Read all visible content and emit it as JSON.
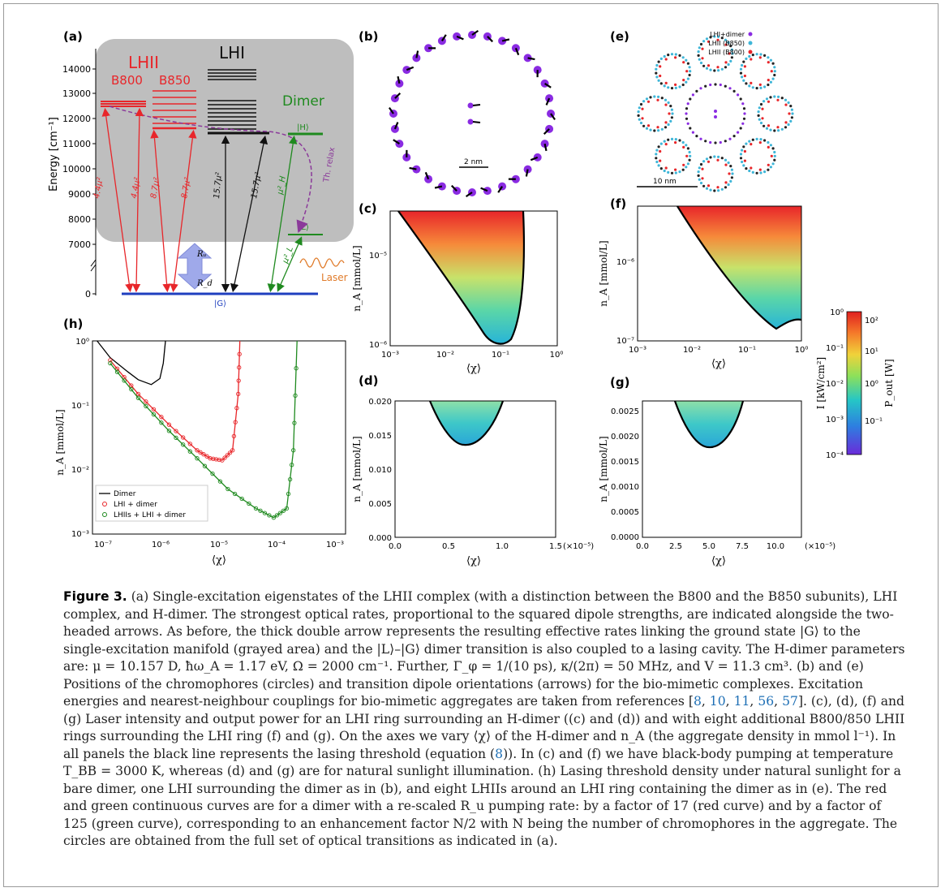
{
  "panels": {
    "a": {
      "tag": "(a)",
      "ylabel": "Energy [cm⁻¹]",
      "yticks": [
        "14000",
        "13000",
        "12000",
        "11000",
        "10000",
        "9000",
        "8000",
        "7000",
        "0"
      ],
      "labels": {
        "lhii": "LHII",
        "b800": "B800",
        "b850": "B850",
        "lhi": "LHI",
        "dimer": "Dimer",
        "H": "|H⟩",
        "L": "|L⟩",
        "G": "|G⟩",
        "relax": "Th. relax",
        "laser": "Laser",
        "Ru": "Rᵤ",
        "Rd": "R_d"
      },
      "rates": [
        "4.4μ²",
        "4.4μ²",
        "8.7μ²",
        "8.7μ²",
        "15.7μ²",
        "15.7μ²",
        "μ²_H",
        "μ²_L"
      ],
      "colors": {
        "lhii": "#e8262a",
        "lhi": "#111111",
        "dimer": "#1f8a1f",
        "relax": "#8b3a9a",
        "laser": "#e07b2a",
        "ground": "#1f3fbf"
      }
    },
    "b": {
      "tag": "(b)",
      "scale": "2 nm"
    },
    "e": {
      "tag": "(e)",
      "scale": "10 nm",
      "legend": [
        "LHI+dimer",
        "LHII (B850)",
        "LHII (B800)"
      ]
    },
    "c": {
      "tag": "(c)",
      "xlabel": "⟨χ⟩",
      "ylabel": "n_A [mmol/L]",
      "xticks": [
        "10⁻³",
        "10⁻²",
        "10⁻¹",
        "10⁰"
      ],
      "yticks": [
        "10⁻⁵",
        "10⁻⁶"
      ]
    },
    "f": {
      "tag": "(f)",
      "xlabel": "⟨χ⟩",
      "ylabel": "n_A [mmol/L]",
      "xticks": [
        "10⁻³",
        "10⁻²",
        "10⁻¹",
        "10⁰"
      ],
      "yticks": [
        "10⁻⁶",
        "10⁻⁷"
      ]
    },
    "d": {
      "tag": "(d)",
      "xlabel": "⟨χ⟩",
      "ylabel": "n_A [mmol/L]",
      "xticks": [
        "0.0",
        "0.5",
        "1.0",
        "1.5"
      ],
      "yticks": [
        "0.020",
        "0.015",
        "0.010",
        "0.005",
        "0.000"
      ],
      "xmult": "(×10⁻⁵)"
    },
    "g": {
      "tag": "(g)",
      "xlabel": "⟨χ⟩",
      "ylabel": "n_A [mmol/L]",
      "xticks": [
        "0.0",
        "2.5",
        "5.0",
        "7.5",
        "10.0"
      ],
      "yticks": [
        "0.0025",
        "0.0020",
        "0.0015",
        "0.0010",
        "0.0005",
        "0.0000"
      ],
      "xmult": "(×10⁻⁵)"
    },
    "h": {
      "tag": "(h)",
      "xlabel": "⟨χ⟩",
      "ylabel": "n_A [mmol/L]",
      "xticks": [
        "10⁻⁷",
        "10⁻⁶",
        "10⁻⁵",
        "10⁻⁴",
        "10⁻³"
      ],
      "yticks": [
        "10⁰",
        "10⁻¹",
        "10⁻²",
        "10⁻³"
      ],
      "legend": [
        "Dimer",
        "LHI + dimer",
        "LHIIs + LHI + dimer"
      ]
    },
    "colorbar": {
      "left_label": "I [kW/cm²]",
      "right_label": "P_out [W]",
      "left_ticks": [
        "10⁰",
        "10⁻¹",
        "10⁻²",
        "10⁻³",
        "10⁻⁴"
      ],
      "right_ticks": [
        "10²",
        "10¹",
        "10⁰",
        "10⁻¹"
      ]
    }
  },
  "chart_data": [
    {
      "type": "line",
      "title": "",
      "xlabel": "⟨χ⟩",
      "ylabel": "n_A [mmol/L]",
      "xscale": "log",
      "yscale": "log",
      "xlim": [
        5e-08,
        0.001
      ],
      "ylim": [
        0.001,
        1
      ],
      "series": [
        {
          "name": "Dimer",
          "color": "#000000",
          "x": [
            6e-08,
            1e-07,
            2e-07,
            3e-07,
            5e-07,
            7e-07,
            8e-07,
            8.7e-07
          ],
          "y": [
            1.0,
            0.55,
            0.33,
            0.25,
            0.21,
            0.26,
            0.45,
            1.0
          ]
        },
        {
          "name": "LHI + dimer",
          "color": "#e8262a",
          "x": [
            1e-07,
            3e-07,
            1e-06,
            3e-06,
            5e-06,
            8e-06,
            1.2e-05,
            1.5e-05,
            1.6e-05
          ],
          "y": [
            0.5,
            0.15,
            0.05,
            0.02,
            0.015,
            0.014,
            0.02,
            0.15,
            1.0
          ]
        },
        {
          "name": "LHIIs + LHI + dimer",
          "color": "#1f8a1f",
          "x": [
            1e-07,
            3e-07,
            1e-06,
            3e-06,
            1e-05,
            3e-05,
            6e-05,
            0.0001,
            0.00013,
            0.00015
          ],
          "y": [
            0.45,
            0.13,
            0.04,
            0.015,
            0.005,
            0.0025,
            0.0018,
            0.0025,
            0.02,
            1.0
          ]
        }
      ]
    },
    {
      "type": "line",
      "title": "",
      "xlabel": "⟨χ⟩",
      "ylabel": "n_A [mmol/L]",
      "xscale": "log",
      "yscale": "log",
      "xlim": [
        0.001,
        1
      ],
      "ylim": [
        9e-07,
        4e-05
      ],
      "series": [
        {
          "name": "",
          "x": [
            0.0018,
            0.01,
            0.05,
            0.1,
            0.15,
            0.2,
            0.23
          ],
          "y": [
            3.5e-05,
            8e-06,
            2e-06,
            1.1e-06,
            1.3e-06,
            6e-06,
            3.5e-05
          ]
        }
      ]
    },
    {
      "type": "line",
      "title": "",
      "xlabel": "⟨χ⟩",
      "ylabel": "n_A [mmol/L]",
      "xscale": "log",
      "yscale": "log",
      "xlim": [
        0.001,
        1
      ],
      "ylim": [
        1e-07,
        4e-06
      ],
      "series": [
        {
          "name": "",
          "x": [
            0.007,
            0.02,
            0.1,
            0.3,
            0.6,
            0.8,
            1.0
          ],
          "y": [
            3.5e-06,
            1.6e-06,
            6e-07,
            3e-07,
            1.9e-07,
            1.7e-07,
            1.8e-07
          ]
        }
      ]
    },
    {
      "type": "line",
      "title": "",
      "xlabel": "⟨χ⟩",
      "ylabel": "n_A [mmol/L]",
      "xlim": [
        0,
        1.5e-05
      ],
      "ylim": [
        0,
        0.02
      ],
      "series": [
        {
          "name": "",
          "x": [
            3.3e-06,
            5e-06,
            7e-06,
            8.5e-06,
            1e-05,
            1.2e-05,
            1.3e-05
          ],
          "y": [
            0.02,
            0.0155,
            0.014,
            0.0136,
            0.0139,
            0.0155,
            0.02
          ]
        }
      ]
    },
    {
      "type": "line",
      "title": "",
      "xlabel": "⟨χ⟩",
      "ylabel": "n_A [mmol/L]",
      "xlim": [
        0,
        0.00012
      ],
      "ylim": [
        0,
        0.0027
      ],
      "series": [
        {
          "name": "",
          "x": [
            3e-05,
            4e-05,
            5e-05,
            6.2e-05,
            7.5e-05,
            8.5e-05,
            9.5e-05
          ],
          "y": [
            0.0027,
            0.002,
            0.00185,
            0.0018,
            0.00185,
            0.0021,
            0.0027
          ]
        }
      ]
    }
  ],
  "caption": {
    "label": "Figure 3.",
    "p1": " (a) Single-excitation eigenstates of the LHII complex (with a distinction between the B800 and the B850 subunits), LHI complex, and H-dimer. The strongest optical rates, proportional to the squared dipole strengths, are indicated alongside the two-headed arrows. As before, the thick double arrow represents the resulting effective rates linking the ground state |G⟩ to the single-excitation manifold (grayed area) and the |L⟩–|G⟩ dimer transition is also coupled to a lasing cavity. The H-dimer parameters are: μ = 10.157 D, ħω_A = 1.17 eV, Ω = 2000 cm⁻¹. Further, Γ_φ = 1/(10 ps), κ/(2π) = 50 MHz, and V = 11.3 cm³. (b) and (e) Positions of the chromophores (circles) and transition dipole orientations (arrows) for the bio-mimetic complexes. Excitation energies and nearest-neighbour couplings for bio-mimetic aggregates are taken from references [",
    "refs": [
      "8",
      "10",
      "11",
      "56",
      "57"
    ],
    "p2": "]. (c), (d), (f) and (g) Laser intensity and output power for an LHI ring surrounding an H-dimer ((c) and (d)) and with eight additional B800/850 LHII rings surrounding the LHI ring (f) and (g). On the axes we vary ⟨χ⟩ of the H-dimer and n_A (the aggregate density in mmol l⁻¹). In all panels the black line represents the lasing threshold (equation (",
    "eqref": "8",
    "p3": ")). In (c) and (f) we have black-body pumping at temperature T_BB = 3000 K, whereas (d) and (g) are for natural sunlight illumination. (h) Lasing threshold density under natural sunlight for a bare dimer, one LHI surrounding the dimer as in (b), and eight LHIIs around an LHI ring containing the dimer as in (e). The red and green continuous curves are for a dimer with a re-scaled R_u pumping rate: by a factor of 17 (red curve) and by a factor of 125 (green curve), corresponding to an enhancement factor N/2 with N being the number of chromophores in the aggregate. The circles are obtained from the full set of optical transitions as indicated in (a)."
  }
}
